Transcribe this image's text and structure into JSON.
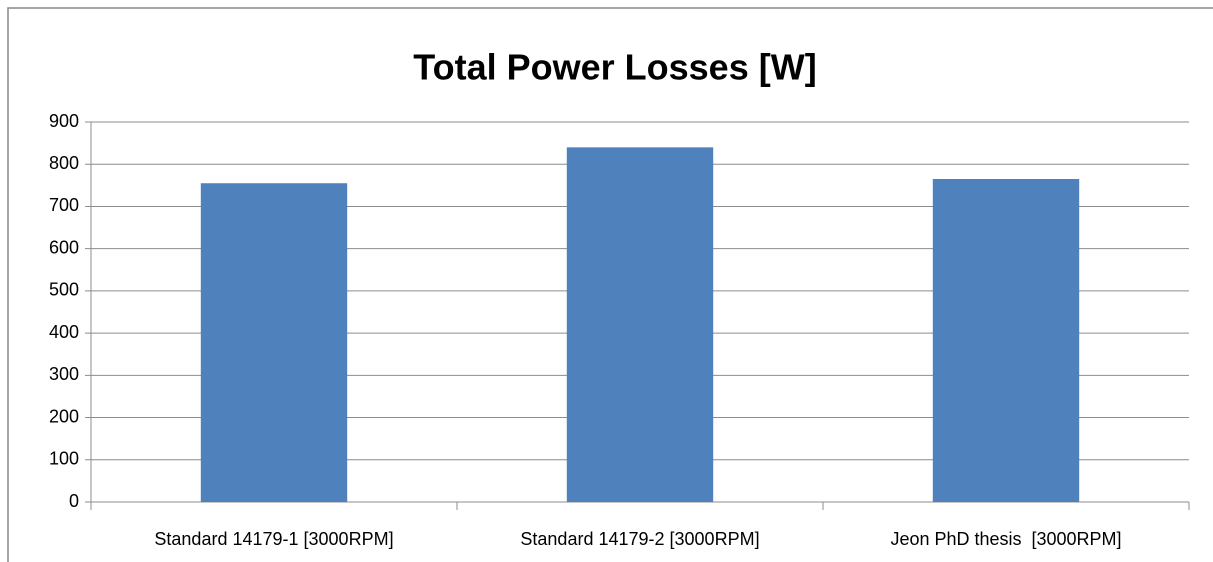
{
  "chart_data": {
    "type": "bar",
    "title": "Total Power Losses [W]",
    "categories": [
      "Standard 14179-1 [3000RPM]",
      "Standard 14179-2 [3000RPM]",
      "Jeon PhD thesis  [3000RPM]"
    ],
    "values": [
      755,
      840,
      765
    ],
    "color": "#4f81bd",
    "ylim": [
      0,
      900
    ],
    "yticks": [
      0,
      100,
      200,
      300,
      400,
      500,
      600,
      700,
      800,
      900
    ],
    "grid": true
  }
}
